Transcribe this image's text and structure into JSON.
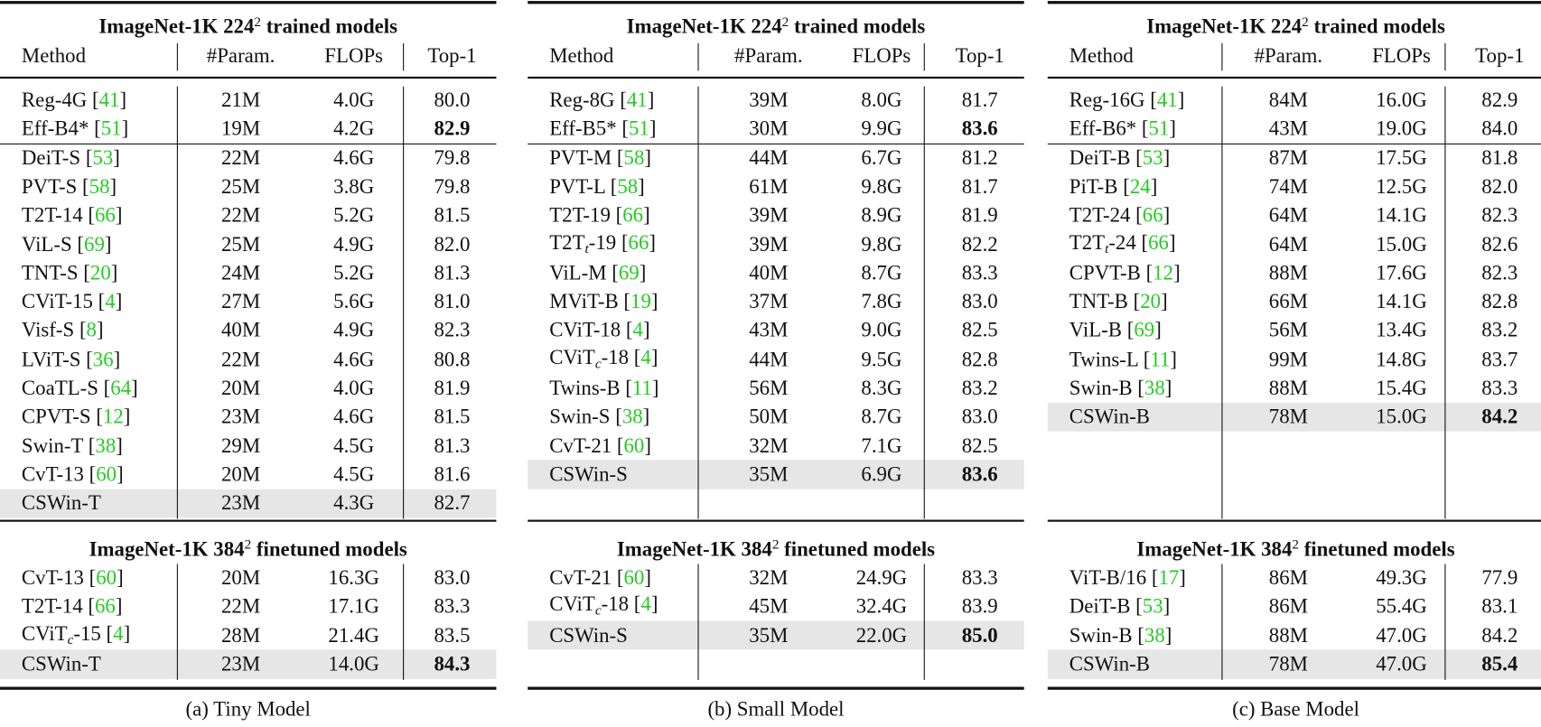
{
  "panels": [
    {
      "title_top": {
        "pre": "ImageNet-1K 224",
        "sup": "2",
        "post": " trained models"
      },
      "columns": [
        "Method",
        "#Param.",
        "FLOPs",
        "Top-1"
      ],
      "top_rows": [
        {
          "method": "Reg-4G",
          "ref": "41",
          "params": "21M",
          "flops": "4.0G",
          "top1": "80.0"
        },
        {
          "method": "Eff-B4*",
          "ref": "51",
          "params": "19M",
          "flops": "4.2G",
          "top1": "82.9",
          "bold": true
        },
        {
          "method": "DeiT-S",
          "ref": "53",
          "params": "22M",
          "flops": "4.6G",
          "top1": "79.8"
        },
        {
          "method": "PVT-S",
          "ref": "58",
          "params": "25M",
          "flops": "3.8G",
          "top1": "79.8"
        },
        {
          "method": "T2T-14",
          "ref": "66",
          "params": "22M",
          "flops": "5.2G",
          "top1": "81.5"
        },
        {
          "method": "ViL-S",
          "ref": "69",
          "params": "25M",
          "flops": "4.9G",
          "top1": "82.0"
        },
        {
          "method": "TNT-S",
          "ref": "20",
          "params": "24M",
          "flops": "5.2G",
          "top1": "81.3"
        },
        {
          "method": "CViT-15",
          "ref": "4",
          "params": "27M",
          "flops": "5.6G",
          "top1": "81.0"
        },
        {
          "method": "Visf-S",
          "ref": "8",
          "params": "40M",
          "flops": "4.9G",
          "top1": "82.3"
        },
        {
          "method": "LViT-S",
          "ref": "36",
          "params": "22M",
          "flops": "4.6G",
          "top1": "80.8"
        },
        {
          "method": "CoaTL-S",
          "ref": "64",
          "params": "20M",
          "flops": "4.0G",
          "top1": "81.9"
        },
        {
          "method": "CPVT-S",
          "ref": "12",
          "params": "23M",
          "flops": "4.6G",
          "top1": "81.5"
        },
        {
          "method": "Swin-T",
          "ref": "38",
          "params": "29M",
          "flops": "4.5G",
          "top1": "81.3"
        },
        {
          "method": "CvT-13",
          "ref": "60",
          "params": "20M",
          "flops": "4.5G",
          "top1": "81.6"
        },
        {
          "method": "CSWin-T",
          "params": "23M",
          "flops": "4.3G",
          "top1": "82.7",
          "highlight": true
        }
      ],
      "title_bottom": {
        "pre": "ImageNet-1K 384",
        "sup": "2",
        "post": " finetuned models"
      },
      "bottom_rows": [
        {
          "method": "CvT-13",
          "ref": "60",
          "params": "20M",
          "flops": "16.3G",
          "top1": "83.0"
        },
        {
          "method": "T2T-14",
          "ref": "66",
          "params": "22M",
          "flops": "17.1G",
          "top1": "83.3"
        },
        {
          "method": "CViT",
          "sub": "c",
          "suffix": "-15",
          "ref": "4",
          "params": "28M",
          "flops": "21.4G",
          "top1": "83.5"
        },
        {
          "method": "CSWin-T",
          "params": "23M",
          "flops": "14.0G",
          "top1": "84.3",
          "bold": true,
          "highlight": true
        }
      ],
      "caption": "(a) Tiny Model"
    },
    {
      "title_top": {
        "pre": "ImageNet-1K 224",
        "sup": "2",
        "post": " trained models"
      },
      "columns": [
        "Method",
        "#Param.",
        "FLOPs",
        "Top-1"
      ],
      "top_rows": [
        {
          "method": "Reg-8G",
          "ref": "41",
          "params": "39M",
          "flops": "8.0G",
          "top1": "81.7"
        },
        {
          "method": "Eff-B5*",
          "ref": "51",
          "params": "30M",
          "flops": "9.9G",
          "top1": "83.6",
          "bold": true
        },
        {
          "method": "PVT-M",
          "ref": "58",
          "params": "44M",
          "flops": "6.7G",
          "top1": "81.2"
        },
        {
          "method": "PVT-L",
          "ref": "58",
          "params": "61M",
          "flops": "9.8G",
          "top1": "81.7"
        },
        {
          "method": "T2T-19",
          "ref": "66",
          "params": "39M",
          "flops": "8.9G",
          "top1": "81.9"
        },
        {
          "method": "T2T",
          "sub": "t",
          "suffix": "-19",
          "ref": "66",
          "params": "39M",
          "flops": "9.8G",
          "top1": "82.2"
        },
        {
          "method": "ViL-M",
          "ref": "69",
          "params": "40M",
          "flops": "8.7G",
          "top1": "83.3"
        },
        {
          "method": "MViT-B",
          "ref": "19",
          "params": "37M",
          "flops": "7.8G",
          "top1": "83.0"
        },
        {
          "method": "CViT-18",
          "ref": "4",
          "params": "43M",
          "flops": "9.0G",
          "top1": "82.5"
        },
        {
          "method": "CViT",
          "sub": "c",
          "suffix": "-18",
          "ref": "4",
          "params": "44M",
          "flops": "9.5G",
          "top1": "82.8"
        },
        {
          "method": "Twins-B",
          "ref": "11",
          "params": "56M",
          "flops": "8.3G",
          "top1": "83.2"
        },
        {
          "method": "Swin-S",
          "ref": "38",
          "params": "50M",
          "flops": "8.7G",
          "top1": "83.0"
        },
        {
          "method": "CvT-21",
          "ref": "60",
          "params": "32M",
          "flops": "7.1G",
          "top1": "82.5"
        },
        {
          "method": "CSWin-S",
          "params": "35M",
          "flops": "6.9G",
          "top1": "83.6",
          "bold": true,
          "highlight": true
        }
      ],
      "title_bottom": {
        "pre": "ImageNet-1K 384",
        "sup": "2",
        "post": " finetuned models"
      },
      "bottom_rows": [
        {
          "method": "CvT-21",
          "ref": "60",
          "params": "32M",
          "flops": "24.9G",
          "top1": "83.3"
        },
        {
          "method": "CViT",
          "sub": "c",
          "suffix": "-18",
          "ref": "4",
          "params": "45M",
          "flops": "32.4G",
          "top1": "83.9"
        },
        {
          "method": "CSWin-S",
          "params": "35M",
          "flops": "22.0G",
          "top1": "85.0",
          "bold": true,
          "highlight": true
        }
      ],
      "caption": "(b) Small Model"
    },
    {
      "title_top": {
        "pre": "ImageNet-1K 224",
        "sup": "2",
        "post": " trained models"
      },
      "columns": [
        "Method",
        "#Param.",
        "FLOPs",
        "Top-1"
      ],
      "top_rows": [
        {
          "method": "Reg-16G",
          "ref": "41",
          "params": "84M",
          "flops": "16.0G",
          "top1": "82.9"
        },
        {
          "method": "Eff-B6*",
          "ref": "51",
          "params": "43M",
          "flops": "19.0G",
          "top1": "84.0"
        },
        {
          "method": "DeiT-B",
          "ref": "53",
          "params": "87M",
          "flops": "17.5G",
          "top1": "81.8"
        },
        {
          "method": "PiT-B",
          "ref": "24",
          "params": "74M",
          "flops": "12.5G",
          "top1": "82.0"
        },
        {
          "method": "T2T-24",
          "ref": "66",
          "params": "64M",
          "flops": "14.1G",
          "top1": "82.3"
        },
        {
          "method": "T2T",
          "sub": "t",
          "suffix": "-24",
          "ref": "66",
          "params": "64M",
          "flops": "15.0G",
          "top1": "82.6"
        },
        {
          "method": "CPVT-B",
          "ref": "12",
          "params": "88M",
          "flops": "17.6G",
          "top1": "82.3"
        },
        {
          "method": "TNT-B",
          "ref": "20",
          "params": "66M",
          "flops": "14.1G",
          "top1": "82.8"
        },
        {
          "method": "ViL-B",
          "ref": "69",
          "params": "56M",
          "flops": "13.4G",
          "top1": "83.2"
        },
        {
          "method": "Twins-L",
          "ref": "11",
          "params": "99M",
          "flops": "14.8G",
          "top1": "83.7"
        },
        {
          "method": "Swin-B",
          "ref": "38",
          "params": "88M",
          "flops": "15.4G",
          "top1": "83.3"
        },
        {
          "method": "CSWin-B",
          "params": "78M",
          "flops": "15.0G",
          "top1": "84.2",
          "bold": true,
          "highlight": true
        }
      ],
      "title_bottom": {
        "pre": "ImageNet-1K 384",
        "sup": "2",
        "post": " finetuned models"
      },
      "bottom_rows": [
        {
          "method": "ViT-B/16",
          "ref": "17",
          "params": "86M",
          "flops": "49.3G",
          "top1": "77.9"
        },
        {
          "method": "DeiT-B",
          "ref": "53",
          "params": "86M",
          "flops": "55.4G",
          "top1": "83.1"
        },
        {
          "method": "Swin-B",
          "ref": "38",
          "params": "88M",
          "flops": "47.0G",
          "top1": "84.2"
        },
        {
          "method": "CSWin-B",
          "params": "78M",
          "flops": "47.0G",
          "top1": "85.4",
          "bold": true,
          "highlight": true
        }
      ],
      "caption": "(c) Base Model"
    }
  ]
}
